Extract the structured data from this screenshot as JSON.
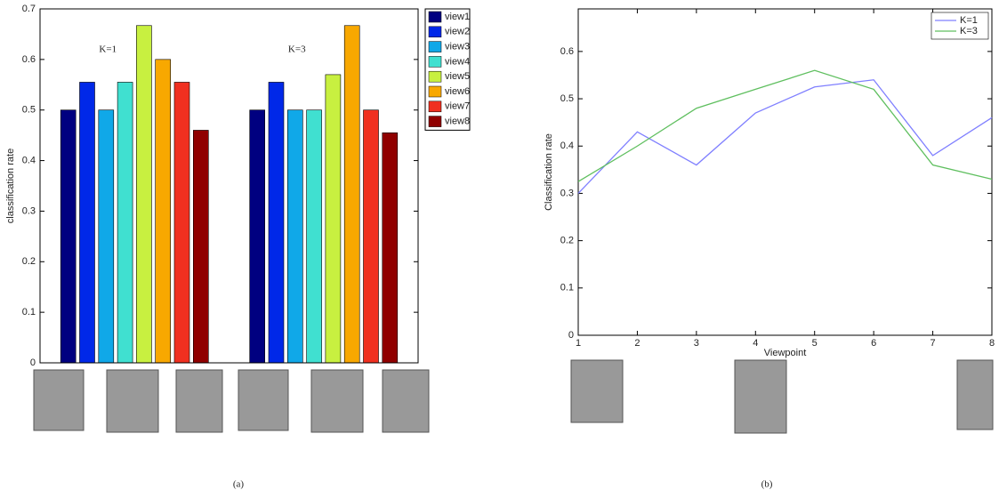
{
  "chart_data": [
    {
      "type": "bar",
      "caption": "(a)",
      "ylabel": "classification rate",
      "categories": [
        "K=1",
        "K=3"
      ],
      "series": [
        {
          "name": "view1",
          "color": "#000080",
          "values": [
            0.5,
            0.5
          ]
        },
        {
          "name": "view2",
          "color": "#0028e8",
          "values": [
            0.555,
            0.555
          ]
        },
        {
          "name": "view3",
          "color": "#10a8e8",
          "values": [
            0.5,
            0.5
          ]
        },
        {
          "name": "view4",
          "color": "#40e0d0",
          "values": [
            0.555,
            0.5
          ]
        },
        {
          "name": "view5",
          "color": "#c8f040",
          "values": [
            0.667,
            0.57
          ]
        },
        {
          "name": "view6",
          "color": "#f8a800",
          "values": [
            0.6,
            0.667
          ]
        },
        {
          "name": "view7",
          "color": "#f03020",
          "values": [
            0.555,
            0.5
          ]
        },
        {
          "name": "view8",
          "color": "#900000",
          "values": [
            0.46,
            0.455
          ]
        }
      ],
      "ylim": [
        0,
        0.7
      ],
      "yticks": [
        0,
        0.1,
        0.2,
        0.3,
        0.4,
        0.5,
        0.6,
        0.7
      ],
      "legend": "right"
    },
    {
      "type": "line",
      "caption": "(b)",
      "xlabel": "Viewpoint",
      "ylabel": "Classification rate",
      "x": [
        1,
        2,
        3,
        4,
        5,
        6,
        7,
        8
      ],
      "series": [
        {
          "name": "K=1",
          "color": "#7f7fff",
          "values": [
            0.3,
            0.43,
            0.36,
            0.47,
            0.525,
            0.54,
            0.38,
            0.46
          ]
        },
        {
          "name": "K=3",
          "color": "#5fbf5f",
          "values": [
            0.325,
            0.4,
            0.48,
            0.52,
            0.56,
            0.52,
            0.36,
            0.33
          ]
        }
      ],
      "xlim": [
        1,
        8
      ],
      "xticks": [
        1,
        2,
        3,
        4,
        5,
        6,
        7,
        8
      ],
      "ylim": [
        0,
        0.69
      ],
      "yticks": [
        0,
        0.1,
        0.2,
        0.3,
        0.4,
        0.5,
        0.6
      ],
      "legend": "upper right"
    }
  ]
}
